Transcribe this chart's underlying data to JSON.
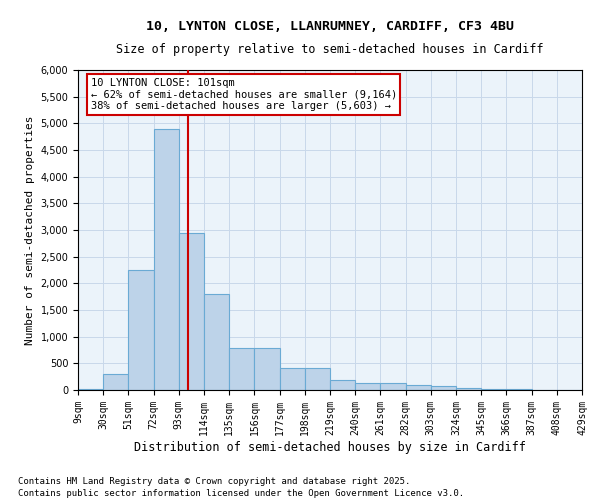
{
  "title_line1": "10, LYNTON CLOSE, LLANRUMNEY, CARDIFF, CF3 4BU",
  "title_line2": "Size of property relative to semi-detached houses in Cardiff",
  "xlabel": "Distribution of semi-detached houses by size in Cardiff",
  "ylabel": "Number of semi-detached properties",
  "footer_line1": "Contains HM Land Registry data © Crown copyright and database right 2025.",
  "footer_line2": "Contains public sector information licensed under the Open Government Licence v3.0.",
  "annotation_line1": "10 LYNTON CLOSE: 101sqm",
  "annotation_line2": "← 62% of semi-detached houses are smaller (9,164)",
  "annotation_line3": "38% of semi-detached houses are larger (5,603) →",
  "bin_edges": [
    9,
    30,
    51,
    72,
    93,
    114,
    135,
    156,
    177,
    198,
    219,
    240,
    261,
    282,
    303,
    324,
    345,
    366,
    387,
    408,
    429
  ],
  "bar_heights": [
    25,
    300,
    2250,
    4900,
    2950,
    1800,
    780,
    780,
    420,
    420,
    190,
    125,
    125,
    95,
    75,
    45,
    25,
    18,
    8,
    4
  ],
  "bar_color": "#BDD3E9",
  "bar_edge_color": "#6AAAD4",
  "vline_color": "#CC0000",
  "vline_x": 101,
  "ylim": [
    0,
    6000
  ],
  "yticks": [
    0,
    500,
    1000,
    1500,
    2000,
    2500,
    3000,
    3500,
    4000,
    4500,
    5000,
    5500,
    6000
  ],
  "grid_color": "#C8D8EA",
  "bg_color": "#EBF3FA",
  "annotation_box_color": "#CC0000",
  "title_fontsize": 9.5,
  "subtitle_fontsize": 8.5,
  "axis_label_fontsize": 8,
  "tick_fontsize": 7,
  "annotation_fontsize": 7.5,
  "footer_fontsize": 6.5
}
